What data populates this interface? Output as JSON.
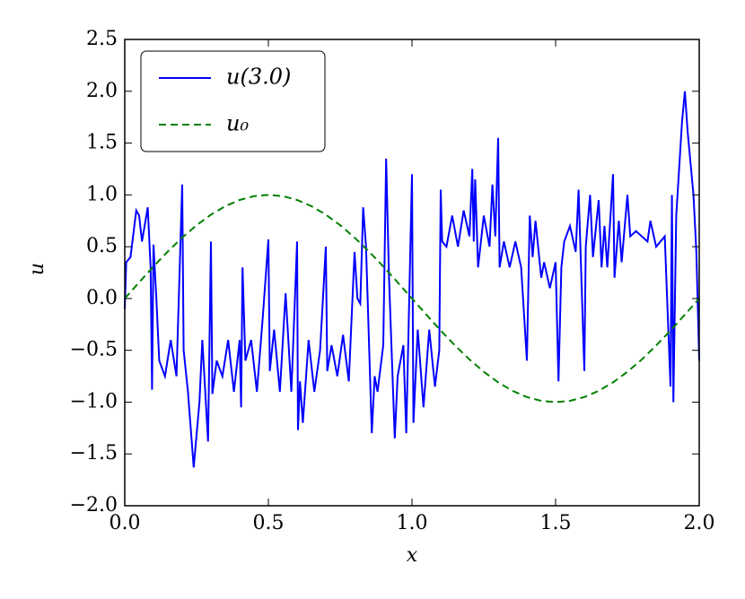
{
  "chart_data": {
    "type": "line",
    "x_label": "x",
    "y_label": "u",
    "xlim": [
      0,
      2
    ],
    "ylim": [
      -2,
      2.5
    ],
    "xticks": [
      {
        "value": 0,
        "label": "0.0"
      },
      {
        "value": 0.5,
        "label": "0.5"
      },
      {
        "value": 1,
        "label": "1.0"
      },
      {
        "value": 1.5,
        "label": "1.5"
      },
      {
        "value": 2,
        "label": "2.0"
      }
    ],
    "yticks": [
      {
        "value": -2,
        "label": "−2.0"
      },
      {
        "value": -1.5,
        "label": "−1.5"
      },
      {
        "value": -1,
        "label": "−1.0"
      },
      {
        "value": -0.5,
        "label": "−0.5"
      },
      {
        "value": 0,
        "label": "0.0"
      },
      {
        "value": 0.5,
        "label": "0.5"
      },
      {
        "value": 1,
        "label": "1.0"
      },
      {
        "value": 1.5,
        "label": "1.5"
      },
      {
        "value": 2,
        "label": "2.0"
      },
      {
        "value": 2.5,
        "label": "2.5"
      }
    ],
    "legend": "upper left",
    "series": [
      {
        "name": "u(3.0)",
        "color": "#0000ff",
        "dash": false,
        "x": [
          0,
          0.005,
          0.02,
          0.04,
          0.05,
          0.06,
          0.08,
          0.09,
          0.095,
          0.1,
          0.11,
          0.12,
          0.14,
          0.16,
          0.18,
          0.2,
          0.205,
          0.22,
          0.24,
          0.26,
          0.27,
          0.29,
          0.3,
          0.305,
          0.32,
          0.34,
          0.36,
          0.38,
          0.4,
          0.405,
          0.41,
          0.42,
          0.44,
          0.46,
          0.48,
          0.5,
          0.505,
          0.52,
          0.54,
          0.56,
          0.58,
          0.6,
          0.603,
          0.61,
          0.62,
          0.64,
          0.66,
          0.68,
          0.7,
          0.705,
          0.72,
          0.74,
          0.76,
          0.78,
          0.8,
          0.81,
          0.82,
          0.83,
          0.84,
          0.86,
          0.87,
          0.88,
          0.9,
          0.91,
          0.92,
          0.94,
          0.95,
          0.97,
          0.98,
          1.0,
          1.005,
          1.02,
          1.04,
          1.06,
          1.08,
          1.095,
          1.1,
          1.105,
          1.12,
          1.14,
          1.16,
          1.18,
          1.2,
          1.21,
          1.215,
          1.22,
          1.23,
          1.25,
          1.27,
          1.28,
          1.29,
          1.3,
          1.305,
          1.32,
          1.34,
          1.36,
          1.38,
          1.4,
          1.41,
          1.42,
          1.43,
          1.45,
          1.46,
          1.48,
          1.5,
          1.51,
          1.52,
          1.53,
          1.55,
          1.57,
          1.58,
          1.6,
          1.605,
          1.62,
          1.63,
          1.65,
          1.66,
          1.67,
          1.68,
          1.7,
          1.705,
          1.72,
          1.73,
          1.75,
          1.76,
          1.78,
          1.8,
          1.82,
          1.83,
          1.85,
          1.88,
          1.9,
          1.905,
          1.91,
          1.92,
          1.94,
          1.95,
          1.96,
          1.97,
          1.98,
          1.99,
          2.0
        ],
        "values": [
          -0.1,
          0.35,
          0.4,
          0.85,
          0.8,
          0.55,
          0.88,
          0.3,
          -0.88,
          0.52,
          0.0,
          -0.6,
          -0.75,
          -0.4,
          -0.75,
          1.1,
          -0.5,
          -0.9,
          -1.63,
          -1.0,
          -0.4,
          -1.38,
          0.55,
          -0.92,
          -0.6,
          -0.75,
          -0.4,
          -0.9,
          -0.4,
          -1.05,
          0.3,
          -0.6,
          -0.4,
          -0.9,
          -0.2,
          0.57,
          -0.7,
          -0.3,
          -0.9,
          0.05,
          -0.9,
          0.55,
          -1.27,
          -0.8,
          -1.2,
          -0.4,
          -0.9,
          -0.5,
          0.5,
          -0.7,
          -0.45,
          -0.75,
          -0.35,
          -0.8,
          0.45,
          0.0,
          -0.05,
          0.88,
          0.5,
          -1.3,
          -0.75,
          -0.9,
          -0.45,
          1.35,
          0.2,
          -1.35,
          -0.75,
          -0.45,
          -1.3,
          1.2,
          -1.2,
          -0.3,
          -1.05,
          -0.3,
          -0.85,
          -0.5,
          1.05,
          0.55,
          0.5,
          0.8,
          0.5,
          0.85,
          0.6,
          1.25,
          0.55,
          1.15,
          0.3,
          0.8,
          0.5,
          1.1,
          0.6,
          1.55,
          0.3,
          0.55,
          0.3,
          0.55,
          0.3,
          -0.6,
          0.8,
          0.4,
          0.75,
          0.2,
          0.35,
          0.1,
          0.35,
          -0.8,
          0.3,
          0.55,
          0.7,
          0.45,
          1.05,
          -0.7,
          0.5,
          1.0,
          0.4,
          0.95,
          0.3,
          0.7,
          0.3,
          1.2,
          0.2,
          0.75,
          0.35,
          1.0,
          0.6,
          0.65,
          0.6,
          0.55,
          0.75,
          0.5,
          0.6,
          -0.85,
          1.0,
          -1.0,
          0.8,
          1.7,
          2.0,
          1.6,
          1.3,
          1.0,
          0.45,
          -0.6
        ]
      },
      {
        "name": "u₀",
        "color": "#008000",
        "dash": true,
        "x": [
          0,
          0.05,
          0.1,
          0.15,
          0.2,
          0.25,
          0.3,
          0.35,
          0.4,
          0.45,
          0.5,
          0.55,
          0.6,
          0.65,
          0.7,
          0.75,
          0.8,
          0.85,
          0.9,
          0.95,
          1.0,
          1.05,
          1.1,
          1.15,
          1.2,
          1.25,
          1.3,
          1.35,
          1.4,
          1.45,
          1.5,
          1.55,
          1.6,
          1.65,
          1.7,
          1.75,
          1.8,
          1.85,
          1.9,
          1.95,
          2.0
        ],
        "values": [
          0,
          0.156,
          0.309,
          0.454,
          0.588,
          0.707,
          0.809,
          0.891,
          0.951,
          0.988,
          1.0,
          0.988,
          0.951,
          0.891,
          0.809,
          0.707,
          0.588,
          0.454,
          0.309,
          0.156,
          0,
          -0.156,
          -0.309,
          -0.454,
          -0.588,
          -0.707,
          -0.809,
          -0.891,
          -0.951,
          -0.988,
          -1.0,
          -0.988,
          -0.951,
          -0.891,
          -0.809,
          -0.707,
          -0.588,
          -0.454,
          -0.309,
          -0.156,
          0
        ]
      }
    ]
  }
}
